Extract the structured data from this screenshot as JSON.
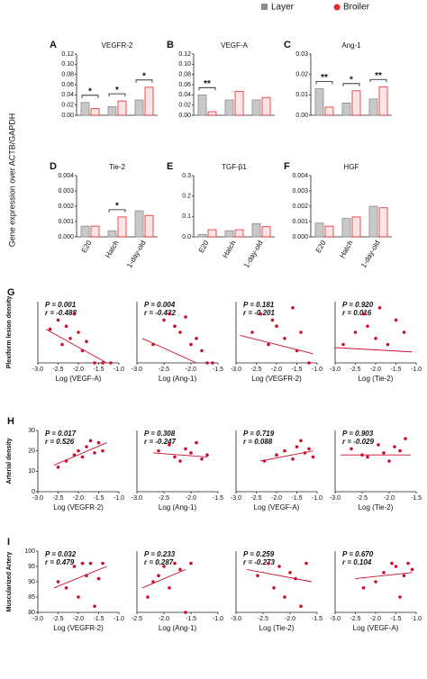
{
  "legend": [
    {
      "name": "Layer",
      "color": "#8c8c8c"
    },
    {
      "name": "Broiler",
      "color": "#e8262a"
    }
  ],
  "ylabel": "Gene expression over ACTB/GAPDH",
  "chart_data": [
    {
      "type": "bar",
      "panel": "A",
      "title": "VEGFR-2",
      "categories": [
        null,
        null,
        null
      ],
      "series": [
        {
          "values": [
            0.025,
            0.017,
            0.03
          ]
        },
        {
          "values": [
            0.013,
            0.028,
            0.055
          ]
        }
      ],
      "significance": [
        "*",
        "*",
        "*"
      ],
      "ylim": [
        0,
        0.12
      ],
      "yticks": [
        {
          "value": 0,
          "label": "0.00"
        },
        0.02,
        0.04,
        0.06,
        0.08,
        {
          "value": 0.1,
          "label": "0.10"
        },
        0.12
      ]
    },
    {
      "type": "bar",
      "panel": "B",
      "title": "VEGF-A",
      "categories": [
        null,
        null,
        null
      ],
      "series": [
        {
          "values": [
            0.04,
            0.03,
            0.03
          ]
        },
        {
          "values": [
            0.007,
            0.047,
            0.035
          ]
        }
      ],
      "significance": [
        "**",
        null,
        null
      ],
      "ylim": [
        0,
        0.12
      ],
      "yticks": [
        {
          "value": 0,
          "label": "0.00"
        },
        0.02,
        0.04,
        0.06,
        0.08,
        {
          "value": 0.1,
          "label": "0.10"
        },
        0.12
      ]
    },
    {
      "type": "bar",
      "panel": "C",
      "title": "Ang-1",
      "categories": [
        null,
        null,
        null
      ],
      "series": [
        {
          "values": [
            0.013,
            0.006,
            0.008
          ]
        },
        {
          "values": [
            0.004,
            0.012,
            0.014
          ]
        }
      ],
      "significance": [
        "**",
        "*",
        "**"
      ],
      "ylim": [
        0,
        0.03
      ],
      "yticks": [
        {
          "value": 0,
          "label": "0.00"
        },
        0.01,
        0.02,
        0.03
      ]
    },
    {
      "type": "bar",
      "panel": "D",
      "title": "Tie-2",
      "categories": [
        "E20",
        "Hatch",
        "1-day-old"
      ],
      "series": [
        {
          "values": [
            0.0007,
            0.0004,
            0.0017
          ]
        },
        {
          "values": [
            0.0007,
            0.0013,
            0.0014
          ]
        }
      ],
      "significance": [
        null,
        "*",
        null
      ],
      "ylim": [
        0,
        0.004
      ],
      "yticks": [
        {
          "value": 0,
          "label": "0.000"
        },
        0.001,
        0.002,
        0.003,
        0.004
      ]
    },
    {
      "type": "bar",
      "panel": "E",
      "title": "TGF-β1",
      "categories": [
        "E20",
        "Hatch",
        "1-day-old"
      ],
      "series": [
        {
          "values": [
            0.012,
            0.03,
            0.065
          ]
        },
        {
          "values": [
            0.035,
            0.035,
            0.05
          ]
        }
      ],
      "significance": [
        null,
        null,
        null
      ],
      "ylim": [
        0,
        0.3
      ],
      "yticks": [
        {
          "value": 0,
          "label": "0.0"
        },
        0.1,
        0.2,
        0.3
      ]
    },
    {
      "type": "bar",
      "panel": "F",
      "title": "HGF",
      "categories": [
        "E20",
        "Hatch",
        "1-day-old"
      ],
      "series": [
        {
          "values": [
            0.0009,
            0.0012,
            0.002
          ]
        },
        {
          "values": [
            0.0007,
            0.0013,
            0.0019
          ]
        }
      ],
      "significance": [
        null,
        null,
        null
      ],
      "ylim": [
        0,
        0.004
      ],
      "yticks": [
        {
          "value": 0,
          "label": "0.000"
        },
        0.001,
        0.002,
        0.003,
        0.004
      ]
    },
    {
      "type": "scatter",
      "panel": "G",
      "ylabel": "Plexiform lesion density",
      "xlabel": "Log (VEGF-A)",
      "p": "P = 0.001",
      "r": "r = -0.488",
      "x": [
        -2.7,
        -2.5,
        -2.4,
        -2.3,
        -2.2,
        -2.1,
        -2.0,
        -1.9,
        -1.8,
        -1.6,
        -1.4,
        -1.2
      ],
      "y": [
        0.55,
        0.7,
        0.3,
        0.6,
        0.4,
        0.8,
        0.5,
        0.2,
        0.35,
        0.0,
        0.0,
        0.0
      ],
      "fit": {
        "x": [
          -2.8,
          -1.3
        ],
        "y": [
          0.55,
          0.0
        ]
      },
      "xlim": [
        -3,
        -1
      ],
      "ylim": [
        0,
        1
      ],
      "xticks": [
        {
          "value": -3,
          "label": "-3.0"
        },
        -2.5,
        {
          "value": -2,
          "label": "-2.0"
        },
        -1.5,
        {
          "value": -1,
          "label": "-1.0"
        }
      ]
    },
    {
      "type": "scatter",
      "xlabel": "Log (Ang-1)",
      "p": "P = 0.004",
      "r": "r = -0.432",
      "x": [
        -2.7,
        -2.5,
        -2.4,
        -2.3,
        -2.2,
        -2.1,
        -2.0,
        -1.9,
        -1.8,
        -1.7,
        -1.6
      ],
      "y": [
        0.3,
        0.7,
        0.8,
        0.6,
        0.5,
        0.75,
        0.3,
        0.4,
        0.2,
        0.0,
        0.0
      ],
      "fit": {
        "x": [
          -2.9,
          -1.9
        ],
        "y": [
          0.4,
          0.0
        ]
      },
      "xlim": [
        -3,
        -1.5
      ],
      "ylim": [
        0,
        1
      ],
      "xticks": [
        {
          "value": -3,
          "label": "-3.0"
        },
        -2.5,
        {
          "value": -2,
          "label": "-2.0"
        },
        -1.5
      ]
    },
    {
      "type": "scatter",
      "xlabel": "Log (VEGFR-2)",
      "p": "P = 0.181",
      "r": "r = -0.201",
      "x": [
        -2.6,
        -2.4,
        -2.2,
        -2.1,
        -2.0,
        -1.8,
        -1.6,
        -1.5,
        -1.4,
        -1.2
      ],
      "y": [
        0.5,
        0.8,
        0.3,
        0.7,
        0.6,
        0.4,
        0.9,
        0.2,
        0.5,
        0.0
      ],
      "fit": {
        "x": [
          -2.9,
          -1.1
        ],
        "y": [
          0.45,
          0.15
        ]
      },
      "xlim": [
        -3,
        -1
      ],
      "ylim": [
        0,
        1
      ],
      "xticks": [
        {
          "value": -3,
          "label": "-3.0"
        },
        -2.5,
        {
          "value": -2,
          "label": "-2.0"
        },
        -1.5,
        {
          "value": -1,
          "label": "-1.0"
        }
      ]
    },
    {
      "type": "scatter",
      "xlabel": "Log (Tie-2)",
      "p": "P = 0.920",
      "r": "r = 0.016",
      "x": [
        -2.8,
        -2.5,
        -2.3,
        -2.2,
        -2.0,
        -1.9,
        -1.7,
        -1.5,
        -1.3
      ],
      "y": [
        0.3,
        0.5,
        0.8,
        0.6,
        0.4,
        0.9,
        0.3,
        0.7,
        0.5
      ],
      "fit": {
        "x": [
          -3.0,
          -1.1
        ],
        "y": [
          0.25,
          0.18
        ]
      },
      "xlim": [
        -3,
        -1
      ],
      "ylim": [
        0,
        1
      ],
      "xticks": [
        {
          "value": -3,
          "label": "-3.0"
        },
        -2.5,
        {
          "value": -2,
          "label": "-2.0"
        },
        -1.5,
        {
          "value": -1,
          "label": "-1.0"
        }
      ]
    },
    {
      "type": "scatter",
      "panel": "H",
      "ylabel": "Arterial density",
      "xlabel": "Log (VEGFR-2)",
      "p": "P = 0.017",
      "r": "r = 0.526",
      "x": [
        -2.5,
        -2.3,
        -2.1,
        -2.0,
        -1.9,
        -1.8,
        -1.7,
        -1.6,
        -1.5,
        -1.4
      ],
      "y": [
        12,
        15,
        18,
        20,
        17,
        22,
        25,
        19,
        24,
        20
      ],
      "fit": {
        "x": [
          -2.6,
          -1.3
        ],
        "y": [
          13,
          24
        ]
      },
      "xlim": [
        -3,
        -1
      ],
      "ylim": [
        0,
        30
      ],
      "yticks": [
        0,
        10,
        20,
        30
      ],
      "xticks": [
        {
          "value": -3,
          "label": "-3.0"
        },
        -2.5,
        {
          "value": -2,
          "label": "-2.0"
        },
        -1.5,
        {
          "value": -1,
          "label": "-1.0"
        }
      ]
    },
    {
      "type": "scatter",
      "xlabel": "Log (Ang-1)",
      "p": "P = 0.308",
      "r": "r = -0.247",
      "x": [
        -2.6,
        -2.4,
        -2.3,
        -2.2,
        -2.1,
        -2.0,
        -1.9,
        -1.8,
        -1.7
      ],
      "y": [
        20,
        23,
        17,
        15,
        21,
        19,
        24,
        16,
        18
      ],
      "fit": {
        "x": [
          -2.7,
          -1.7
        ],
        "y": [
          19,
          17
        ]
      },
      "xlim": [
        -3,
        -1.5
      ],
      "ylim": [
        0,
        30
      ],
      "xticks": [
        {
          "value": -3,
          "label": "-3.0"
        },
        -2.5,
        {
          "value": -2,
          "label": "-2.0"
        },
        -1.5
      ]
    },
    {
      "type": "scatter",
      "xlabel": "Log (VEGF-A)",
      "p": "P = 0.719",
      "r": "r = 0.088",
      "x": [
        -2.3,
        -2.0,
        -1.8,
        -1.6,
        -1.5,
        -1.4,
        -1.3,
        -1.2,
        -1.1
      ],
      "y": [
        15,
        18,
        20,
        16,
        22,
        25,
        19,
        21,
        17
      ],
      "fit": {
        "x": [
          -2.4,
          -1.1
        ],
        "y": [
          15,
          20
        ]
      },
      "xlim": [
        -3,
        -1
      ],
      "ylim": [
        0,
        30
      ],
      "xticks": [
        {
          "value": -3,
          "label": "-3.0"
        },
        -2.5,
        {
          "value": -2,
          "label": "-2.0"
        },
        -1.5,
        {
          "value": -1,
          "label": "-1.0"
        }
      ]
    },
    {
      "type": "scatter",
      "xlabel": "Log (Tie-2)",
      "p": "P = 0.903",
      "r": "r = -0.029",
      "x": [
        -2.7,
        -2.5,
        -2.4,
        -2.2,
        -2.1,
        -2.0,
        -1.9,
        -1.8,
        -1.7
      ],
      "y": [
        21,
        18,
        17,
        23,
        19,
        15,
        22,
        20,
        26
      ],
      "fit": {
        "x": [
          -2.9,
          -1.6
        ],
        "y": [
          18,
          18
        ]
      },
      "xlim": [
        -3,
        -1.5
      ],
      "ylim": [
        0,
        30
      ],
      "xticks": [
        {
          "value": -3,
          "label": "-3.0"
        },
        -2.5,
        {
          "value": -2,
          "label": "-2.0"
        },
        -1.5
      ]
    },
    {
      "type": "scatter",
      "panel": "I",
      "ylabel": "Muscularized Artery",
      "xlabel": "Log (VEGFR-2)",
      "p": "P = 0.032",
      "r": "r = 0.479",
      "x": [
        -2.5,
        -2.3,
        -2.1,
        -2.0,
        -1.9,
        -1.8,
        -1.7,
        -1.6,
        -1.5,
        -1.4
      ],
      "y": [
        90,
        88,
        95,
        85,
        96,
        92,
        96,
        82,
        91,
        96
      ],
      "fit": {
        "x": [
          -2.6,
          -1.3
        ],
        "y": [
          88,
          95
        ]
      },
      "xlim": [
        -3,
        -1
      ],
      "ylim": [
        80,
        100
      ],
      "yticks": [
        80,
        85,
        90,
        95,
        100
      ],
      "xticks": [
        {
          "value": -3,
          "label": "-3.0"
        },
        -2.5,
        {
          "value": -2,
          "label": "-2.0"
        },
        -1.5,
        {
          "value": -1,
          "label": "-1.0"
        }
      ]
    },
    {
      "type": "scatter",
      "xlabel": "Log (Ang-1)",
      "p": "P = 0.233",
      "r": "r = 0.287",
      "x": [
        -2.3,
        -2.2,
        -2.1,
        -2.0,
        -1.9,
        -1.8,
        -1.7,
        -1.6,
        -1.5
      ],
      "y": [
        85,
        90,
        92,
        95,
        88,
        96,
        94,
        80,
        96
      ],
      "fit": {
        "x": [
          -2.4,
          -1.6
        ],
        "y": [
          88,
          94
        ]
      },
      "xlim": [
        -2.5,
        -1
      ],
      "ylim": [
        80,
        100
      ],
      "xticks": [
        -2.5,
        {
          "value": -2,
          "label": "-2.0"
        },
        -1.5,
        {
          "value": -1,
          "label": "-1.0"
        }
      ]
    },
    {
      "type": "scatter",
      "xlabel": "Log (Tie-2)",
      "p": "P = 0.259",
      "r": "r = -0.273",
      "x": [
        -2.6,
        -2.4,
        -2.3,
        -2.2,
        -2.1,
        -2.0,
        -1.9,
        -1.8,
        -1.7
      ],
      "y": [
        92,
        96,
        88,
        95,
        85,
        93,
        91,
        82,
        96
      ],
      "fit": {
        "x": [
          -2.8,
          -1.6
        ],
        "y": [
          94,
          90
        ]
      },
      "xlim": [
        -3,
        -1.5
      ],
      "ylim": [
        80,
        100
      ],
      "xticks": [
        {
          "value": -3,
          "label": "-3.0"
        },
        -2.5,
        {
          "value": -2,
          "label": "-2.0"
        },
        -1.5
      ]
    },
    {
      "type": "scatter",
      "xlabel": "Log (VEGF-A)",
      "p": "P = 0.670",
      "r": "r = 0.104",
      "x": [
        -2.3,
        -2.0,
        -1.8,
        -1.6,
        -1.5,
        -1.4,
        -1.3,
        -1.2,
        -1.1
      ],
      "y": [
        88,
        90,
        93,
        96,
        95,
        85,
        92,
        96,
        94
      ],
      "fit": {
        "x": [
          -2.5,
          -1.1
        ],
        "y": [
          91,
          93
        ]
      },
      "xlim": [
        -3,
        -1
      ],
      "ylim": [
        80,
        100
      ],
      "xticks": [
        {
          "value": -3,
          "label": "-3.0"
        },
        -2.5,
        {
          "value": -2,
          "label": "-2.0"
        },
        -1.5,
        {
          "value": -1,
          "label": "-1.0"
        }
      ]
    }
  ]
}
